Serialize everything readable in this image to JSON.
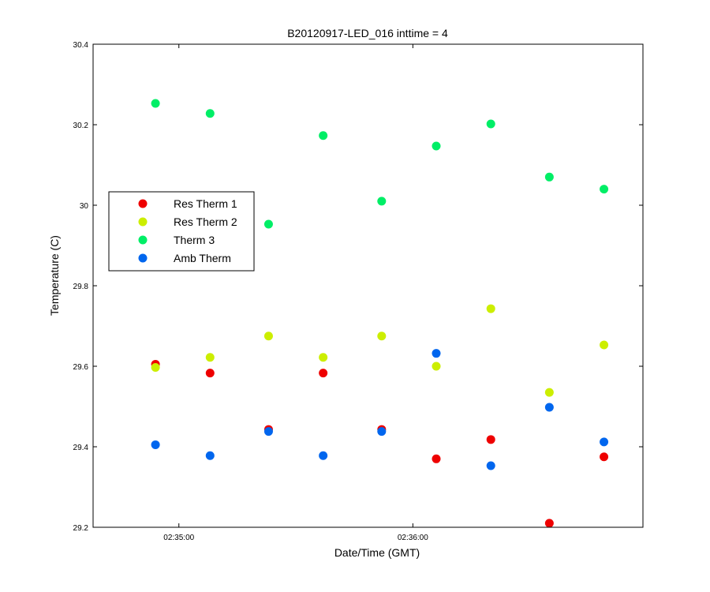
{
  "chart_data": {
    "type": "scatter",
    "title": "B20120917-LED_016 inttime = 4",
    "xlabel": "Date/Time (GMT)",
    "ylabel": "Temperature (C)",
    "ylim": [
      29.2,
      30.4
    ],
    "yticks": [
      "29.2",
      "29.4",
      "29.6",
      "29.8",
      "30",
      "30.2",
      "30.4"
    ],
    "xtick_labels": [
      "02:35:00",
      "02:36:00"
    ],
    "xlim": [
      "02:34:38",
      "02:36:59"
    ],
    "xtick_times": [
      "02:35:00",
      "02:36:00"
    ],
    "x": [
      "02:34:54",
      "02:35:08",
      "02:35:23",
      "02:35:37",
      "02:35:52",
      "02:36:06",
      "02:36:20",
      "02:36:35",
      "02:36:49"
    ],
    "grid": false,
    "legend_position": "left-center",
    "series": [
      {
        "name": "Res Therm 1",
        "color": "#ee0000",
        "values": [
          29.605,
          29.583,
          29.443,
          29.583,
          29.443,
          29.37,
          29.418,
          29.21,
          29.375
        ]
      },
      {
        "name": "Res Therm 2",
        "color": "#ccee00",
        "values": [
          29.597,
          29.622,
          29.675,
          29.622,
          29.675,
          29.6,
          29.743,
          29.535,
          29.653
        ]
      },
      {
        "name": "Therm 3",
        "color": "#00ee66",
        "values": [
          30.253,
          30.228,
          29.953,
          30.173,
          30.01,
          30.147,
          30.202,
          30.07,
          30.04
        ]
      },
      {
        "name": "Amb Therm",
        "color": "#0066ee",
        "values": [
          29.405,
          29.378,
          29.438,
          29.378,
          29.438,
          29.632,
          29.353,
          29.498,
          29.412
        ]
      }
    ]
  }
}
